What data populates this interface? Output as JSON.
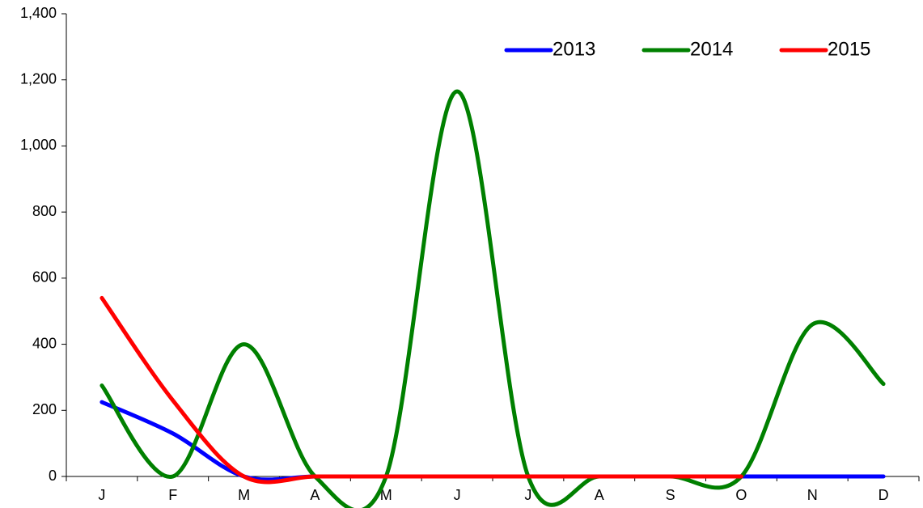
{
  "chart_data": {
    "type": "line",
    "categories": [
      "J",
      "F",
      "M",
      "A",
      "M",
      "J",
      "J",
      "A",
      "S",
      "O",
      "N",
      "D"
    ],
    "series": [
      {
        "name": "2013",
        "color": "#0000ff",
        "values": [
          225,
          130,
          0,
          0,
          0,
          0,
          0,
          0,
          0,
          0,
          0,
          0
        ]
      },
      {
        "name": "2014",
        "color": "#008000",
        "values": [
          275,
          0,
          400,
          0,
          0,
          1165,
          0,
          0,
          0,
          0,
          460,
          280
        ]
      },
      {
        "name": "2015",
        "color": "#ff0000",
        "values": [
          540,
          230,
          0,
          0,
          0,
          0,
          0,
          0,
          0,
          0,
          null,
          null
        ]
      }
    ],
    "ylim": [
      0,
      1400
    ],
    "yticks": [
      0,
      200,
      400,
      600,
      800,
      {
        "value": 1000,
        "label": "1,000"
      },
      {
        "value": 1200,
        "label": "1,200"
      },
      {
        "value": 1400,
        "label": "1,400"
      }
    ],
    "smooth": true,
    "legend": "top-right"
  }
}
